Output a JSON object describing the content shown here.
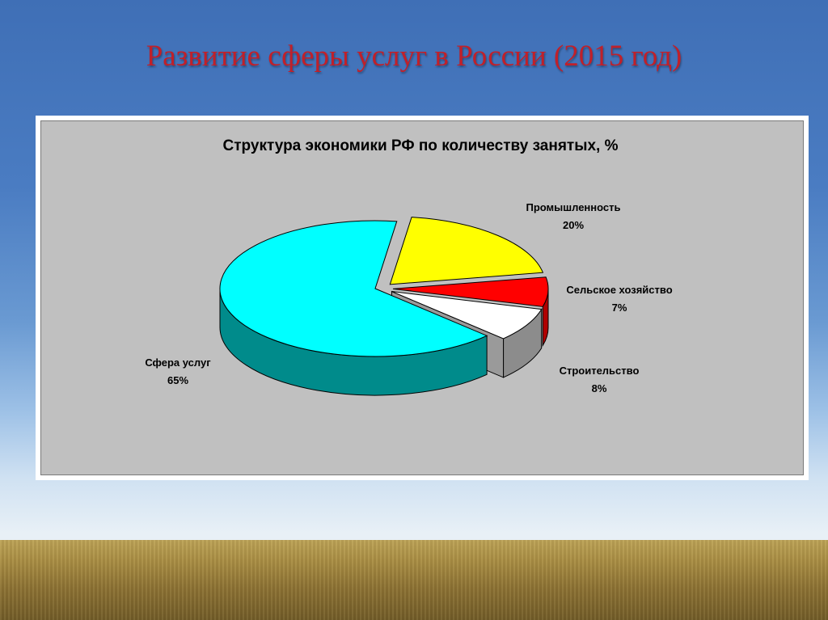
{
  "slide": {
    "title": "Развитие сферы услуг в России (2015 год)"
  },
  "colors": {
    "title": "#c0202a",
    "plot_bg": "#c0c0c0"
  },
  "chart_data": {
    "type": "pie",
    "title": "Структура экономики РФ по количеству занятых, %",
    "three_d": true,
    "exploded": true,
    "slices": [
      {
        "label": "Промышленность",
        "value": 20,
        "value_label": "20%",
        "color": "#ffff00",
        "side": "#b7b700"
      },
      {
        "label": "Сельское хозяйство",
        "value": 7,
        "value_label": "7%",
        "color": "#ff0000",
        "side": "#b00000"
      },
      {
        "label": "Строительство",
        "value": 8,
        "value_label": "8%",
        "color": "#ffffff",
        "side": "#8c8c8c"
      },
      {
        "label": "Сфера услуг",
        "value": 65,
        "value_label": "65%",
        "color": "#00ffff",
        "side": "#008b8b"
      }
    ]
  }
}
